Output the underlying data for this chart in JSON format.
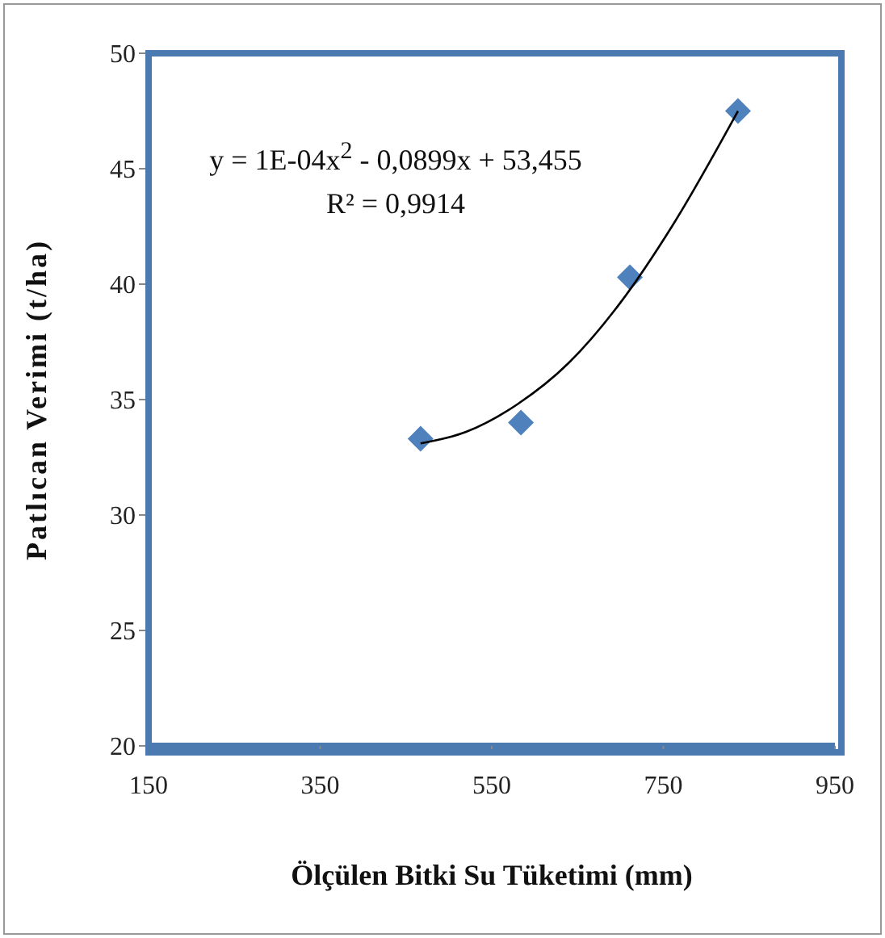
{
  "chart_data": {
    "type": "scatter",
    "xlabel": "Ölçülen Bitki  Su Tüketimi (mm)",
    "ylabel": "Patlıcan Verimi (t/ha)",
    "annotations": [
      "y = 1E-04x$^{2}$ - 0,0899x + 53,455",
      "R² = 0,9914"
    ],
    "series": [
      {
        "color": "#4f81bd",
        "marker": "diamond",
        "x": [
          467,
          584,
          711,
          837
        ],
        "values": [
          33.3,
          34.0,
          40.3,
          47.5
        ]
      },
      {
        "type": "line",
        "color": "#000000",
        "marker": "none",
        "line_style": "solid",
        "x": [
          467,
          520,
          580,
          640,
          700,
          760,
          837
        ],
        "values": [
          33.1,
          33.6,
          34.8,
          36.6,
          39.2,
          42.5,
          47.5
        ]
      }
    ],
    "xlim": [
      150,
      950
    ],
    "xticks": [
      150,
      350,
      550,
      750,
      950
    ],
    "ylim": [
      20,
      50
    ],
    "yticks": [
      20,
      25,
      30,
      35,
      40,
      45,
      50
    ],
    "grid": false,
    "legend": false
  }
}
